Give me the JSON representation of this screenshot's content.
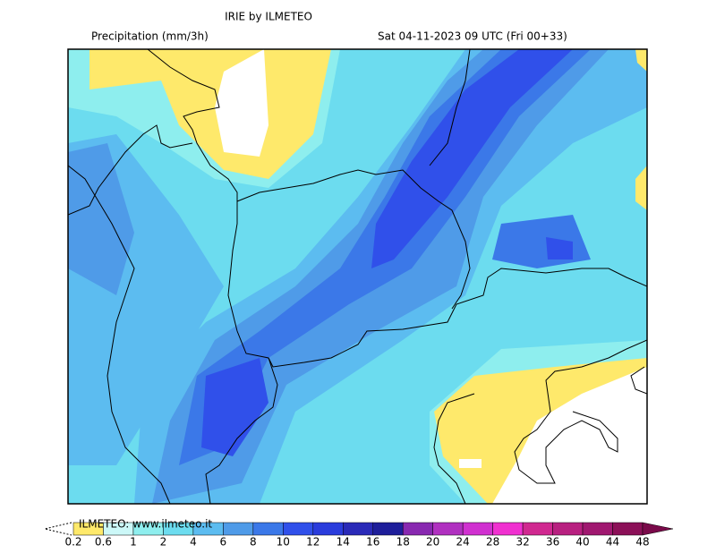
{
  "header": {
    "title": "IRIE by ILMETEO",
    "variable": "Precipitation (mm/3h)",
    "valid_time": "Sat 04-11-2023 09 UTC (Fri 00+33)"
  },
  "legend": {
    "credit": "ILMETEO: www.ilmeteo.it",
    "levels": [
      {
        "value": 0.2,
        "color": "#fee96b"
      },
      {
        "value": 0.6,
        "color": "#ccf8f8"
      },
      {
        "value": 1,
        "color": "#8eeeee"
      },
      {
        "value": 2,
        "color": "#6cdcef"
      },
      {
        "value": 4,
        "color": "#5cbcf0"
      },
      {
        "value": 6,
        "color": "#4f9be8"
      },
      {
        "value": 8,
        "color": "#3b78e8"
      },
      {
        "value": 10,
        "color": "#3050ea"
      },
      {
        "value": 12,
        "color": "#2a3cdc"
      },
      {
        "value": 14,
        "color": "#2a2ab8"
      },
      {
        "value": 16,
        "color": "#1e1e9a"
      },
      {
        "value": 18,
        "color": "#8828b0"
      },
      {
        "value": 20,
        "color": "#b030c0"
      },
      {
        "value": 24,
        "color": "#d030d0"
      },
      {
        "value": 28,
        "color": "#f030d0"
      },
      {
        "value": 32,
        "color": "#d02890"
      },
      {
        "value": 36,
        "color": "#b82080"
      },
      {
        "value": 40,
        "color": "#a01870"
      },
      {
        "value": 44,
        "color": "#8c1058"
      },
      {
        "value": 48,
        "color": "#7a0a4a"
      }
    ]
  }
}
